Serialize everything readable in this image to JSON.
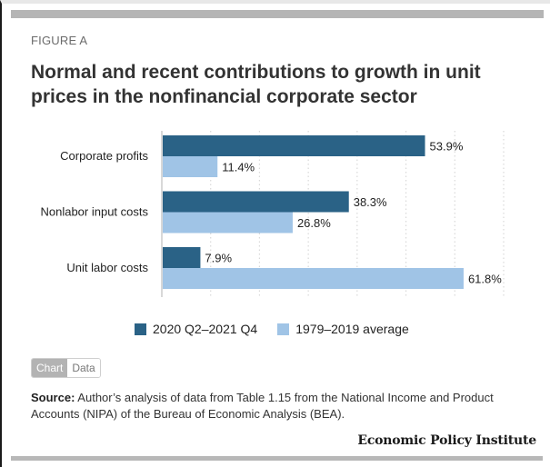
{
  "figure_label": "FIGURE A",
  "title": "Normal and recent contributions to growth in unit prices in the nonfinancial corporate sector",
  "colors": {
    "series_recent": "#2a6286",
    "series_average": "#a0c4e6",
    "grid": "#d9d9d9",
    "axis": "#bdbdbd"
  },
  "chart_data": {
    "type": "bar",
    "orientation": "horizontal",
    "title": "Normal and recent contributions to growth in unit prices in the nonfinancial corporate sector",
    "xlabel": "",
    "ylabel": "",
    "categories": [
      "Corporate profits",
      "Nonlabor input costs",
      "Unit labor costs"
    ],
    "series": [
      {
        "name": "2020 Q2–2021 Q4",
        "values": [
          53.9,
          38.3,
          7.9
        ],
        "labels": [
          "53.9%",
          "38.3%",
          "7.9%"
        ],
        "color": "#2a6286"
      },
      {
        "name": "1979–2019 average",
        "values": [
          11.4,
          26.8,
          61.8
        ],
        "labels": [
          "11.4%",
          "26.8%",
          "61.8%"
        ],
        "color": "#a0c4e6"
      }
    ],
    "xlim": [
      0,
      70
    ],
    "grid_step": 10,
    "grid": true,
    "tick_labels_shown": false,
    "legend_position": "bottom"
  },
  "legend": [
    {
      "label": "2020 Q2–2021 Q4"
    },
    {
      "label": "1979–2019 average"
    }
  ],
  "toggle": {
    "chart_label": "Chart",
    "data_label": "Data",
    "active": "Chart"
  },
  "source": {
    "prefix": "Source:",
    "text": " Author’s analysis of data from Table 1.15 from the National Income and Product Accounts (NIPA) of the Bureau of Economic Analysis (BEA)."
  },
  "brand": "Economic Policy Institute"
}
